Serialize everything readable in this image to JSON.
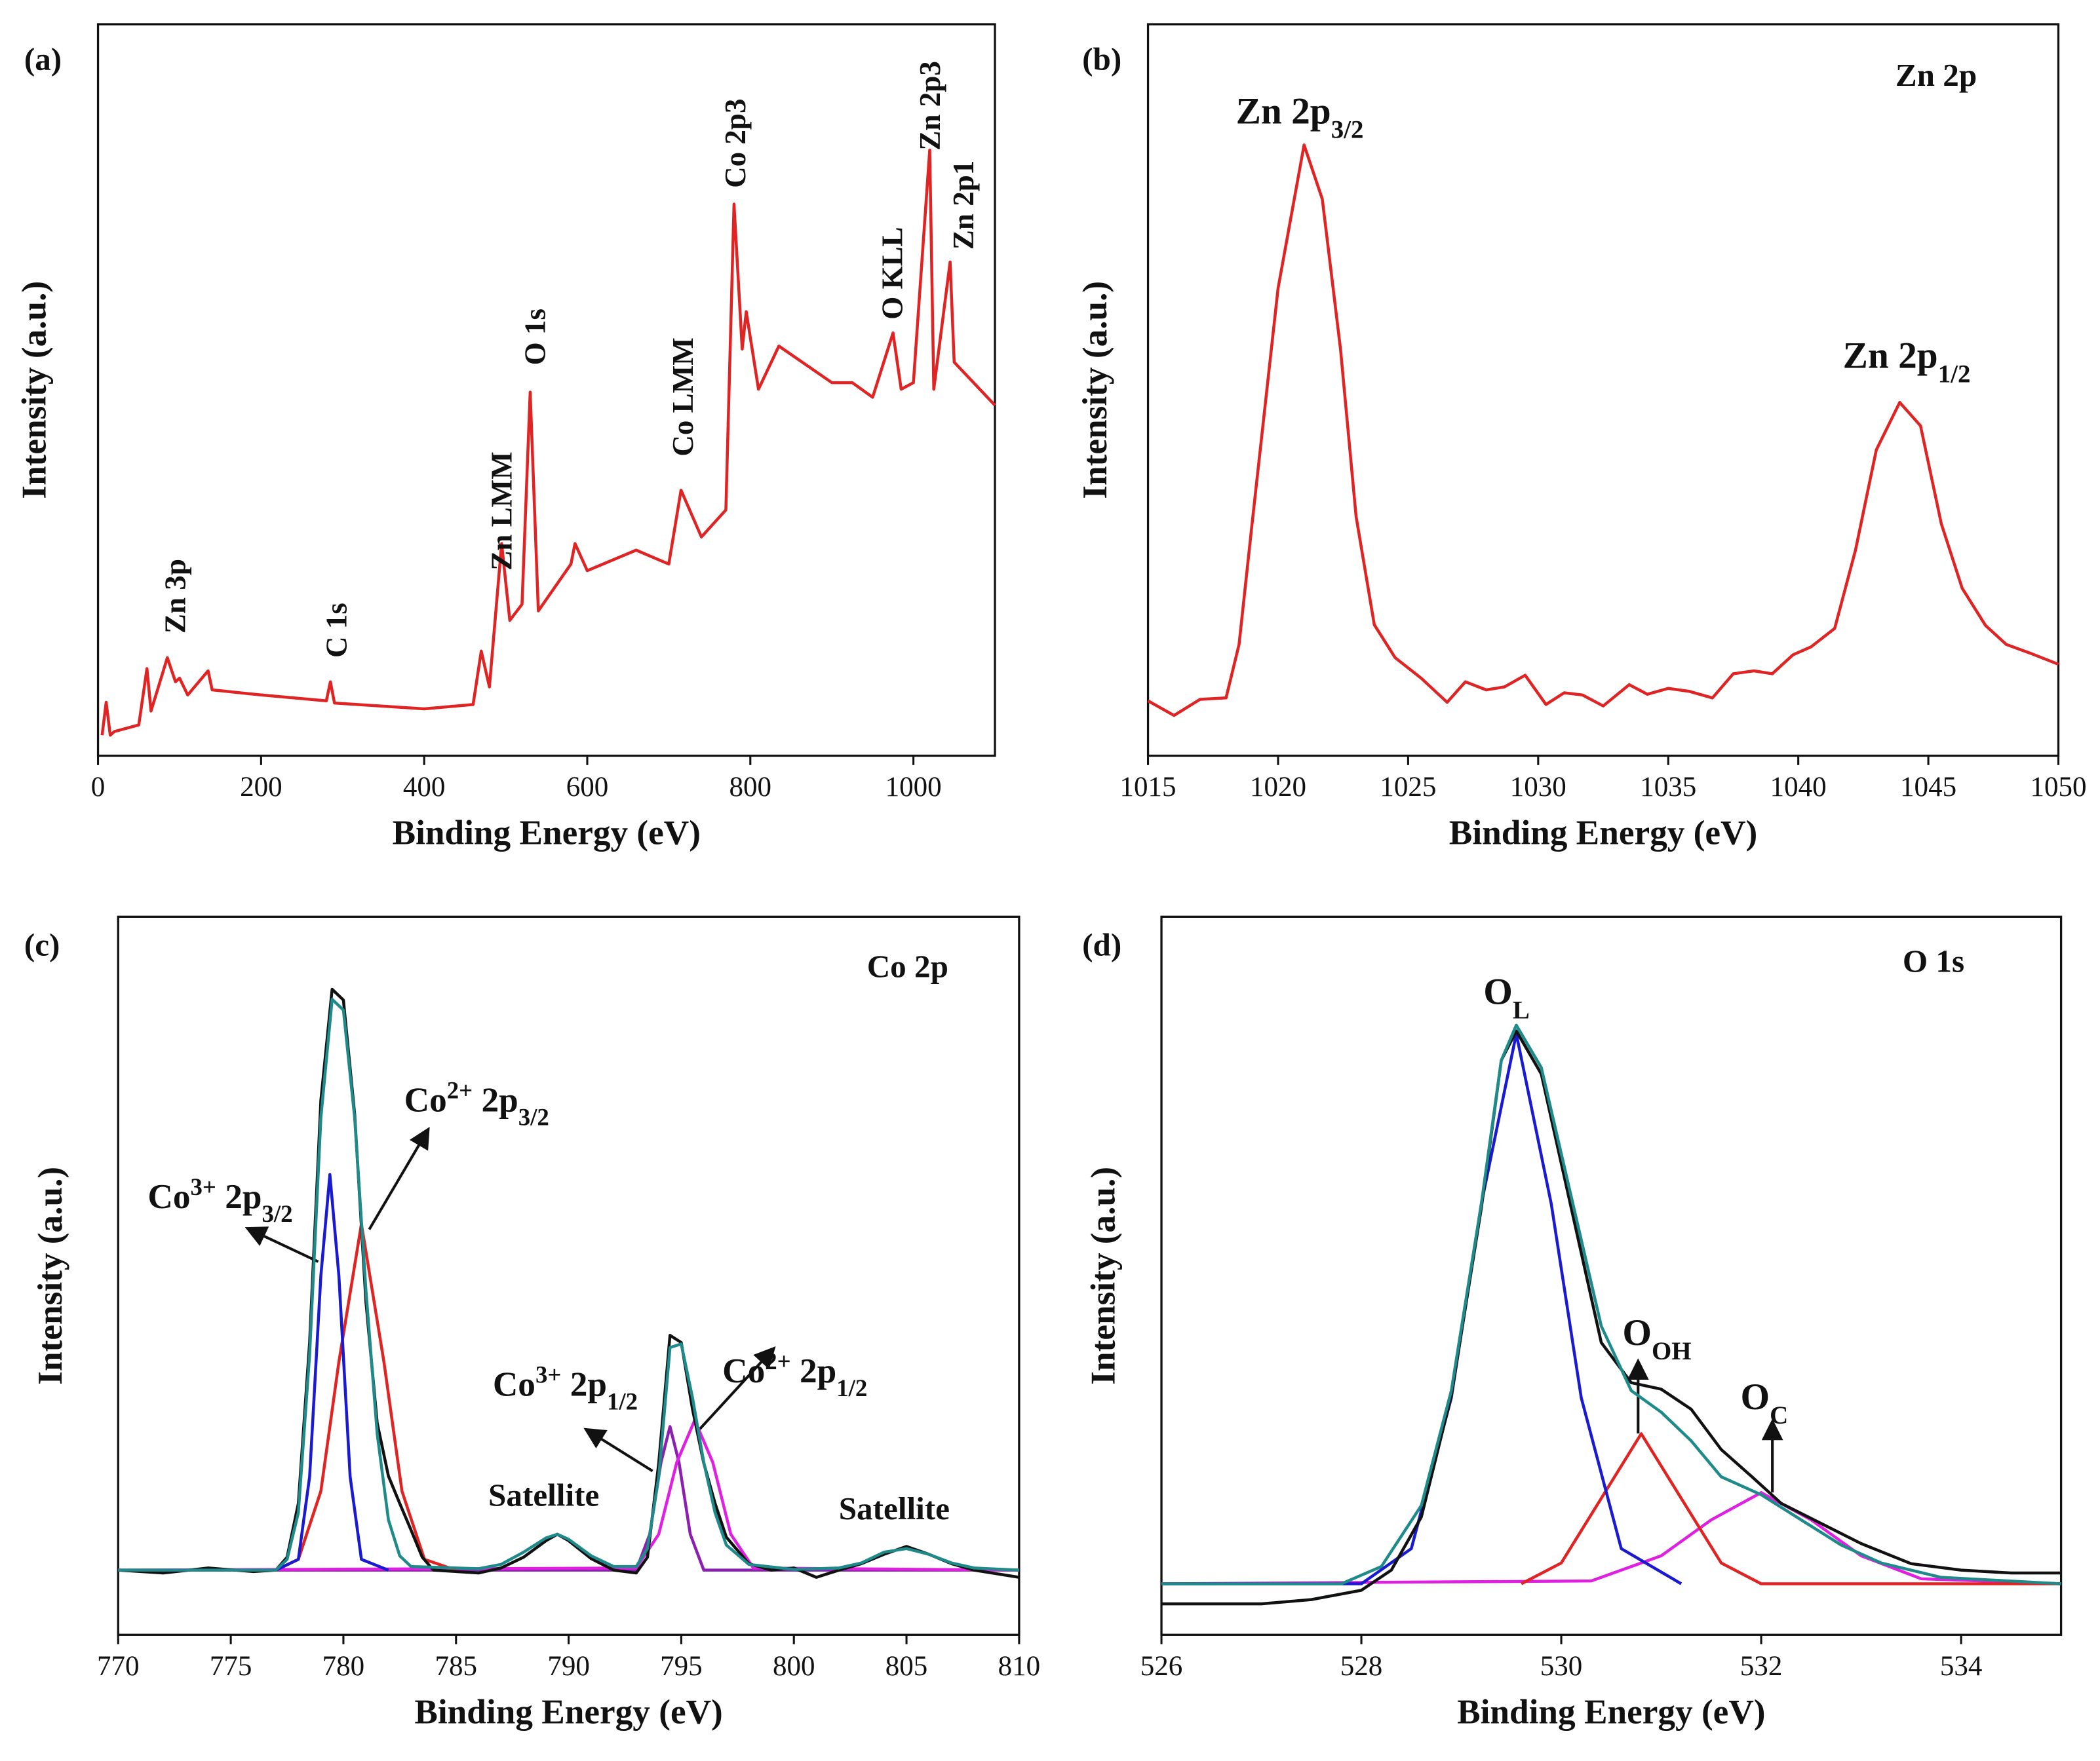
{
  "chart_data": [
    {
      "type": "line",
      "panel": "(a)",
      "xlabel": "Binding Energy (eV)",
      "ylabel": "Intensity (a.u.)",
      "xlim": [
        0,
        1100
      ],
      "xticks": [
        0,
        200,
        400,
        600,
        800,
        1000
      ],
      "ylim": [
        0,
        100
      ],
      "series": [
        {
          "color": "#e02424",
          "x": [
            5,
            10,
            15,
            20,
            50,
            60,
            65,
            85,
            95,
            100,
            110,
            135,
            140,
            200,
            280,
            285,
            290,
            400,
            460,
            470,
            480,
            495,
            505,
            520,
            530,
            540,
            580,
            585,
            600,
            660,
            700,
            715,
            740,
            770,
            780,
            790,
            795,
            810,
            835,
            900,
            925,
            950,
            975,
            985,
            1000,
            1020,
            1025,
            1045,
            1050,
            1100
          ],
          "values": [
            2.8,
            7.3,
            2.8,
            3.3,
            4.2,
            11.9,
            6.1,
            13.4,
            10.1,
            10.6,
            8.3,
            11.6,
            9.0,
            8.3,
            7.5,
            10.1,
            7.2,
            6.4,
            7.0,
            14.3,
            9.4,
            29.0,
            18.5,
            20.7,
            49.7,
            19.8,
            26.2,
            29.0,
            25.3,
            28.1,
            26.2,
            36.3,
            29.9,
            33.6,
            75.4,
            55.6,
            60.7,
            50.1,
            56.0,
            51.0,
            51.0,
            49.0,
            57.8,
            50.1,
            51.0,
            82.8,
            50.1,
            67.5,
            53.8,
            47.9
          ]
        }
      ],
      "annotations": [
        "Zn 3p",
        "C 1s",
        "Zn LMM",
        "O 1s",
        "Co LMM",
        "Co 2p3",
        "O KLL",
        "Zn 2p3",
        "Zn 2p1"
      ]
    },
    {
      "type": "line",
      "panel": "(b)",
      "xlabel": "Binding Energy (eV)",
      "ylabel": "Intensity (a.u.)",
      "xlim": [
        1015,
        1050
      ],
      "xticks": [
        1015,
        1020,
        1025,
        1030,
        1035,
        1040,
        1045,
        1050
      ],
      "ylim": [
        0,
        100
      ],
      "series": [
        {
          "color": "#e02424",
          "x": [
            1015,
            1016,
            1017,
            1018,
            1018.5,
            1019,
            1020,
            1021,
            1021.7,
            1022.4,
            1023,
            1023.7,
            1024.5,
            1025.5,
            1026.5,
            1027.2,
            1028,
            1028.7,
            1029.5,
            1030.3,
            1031,
            1031.7,
            1032.5,
            1033.5,
            1034.2,
            1035,
            1035.8,
            1036.7,
            1037.5,
            1038.3,
            1039,
            1039.8,
            1040.5,
            1041.4,
            1042.2,
            1043,
            1043.9,
            1044.7,
            1045.5,
            1046.3,
            1047.2,
            1048,
            1049,
            1050
          ],
          "values": [
            7.5,
            5.5,
            7.7,
            7.9,
            15.2,
            31.7,
            63.9,
            83.5,
            76.1,
            55.6,
            32.7,
            17.9,
            13.4,
            10.6,
            7.3,
            10.1,
            9.0,
            9.4,
            11.0,
            7.0,
            8.6,
            8.3,
            6.8,
            9.7,
            8.4,
            9.2,
            8.8,
            7.9,
            11.2,
            11.6,
            11.2,
            13.8,
            14.9,
            17.4,
            28.1,
            41.8,
            48.3,
            45.1,
            31.7,
            22.9,
            17.8,
            15.2,
            13.9,
            12.5
          ]
        }
      ],
      "annotations": [
        "Zn 2p",
        [
          "Zn 2p",
          {
            "text": "3/2",
            "pos": "sub"
          }
        ],
        [
          "Zn 2p",
          {
            "text": "1/2",
            "pos": "sub"
          }
        ]
      ]
    },
    {
      "type": "line",
      "panel": "(c)",
      "xlabel": "Binding Energy (eV)",
      "ylabel": "Intensity (a.u.)",
      "xlim": [
        770,
        810
      ],
      "xticks": [
        770,
        775,
        780,
        785,
        790,
        795,
        800,
        805,
        810
      ],
      "ylim": [
        0,
        100
      ],
      "series": [
        {
          "color": "#8a1fb0",
          "x": [
            770,
            793,
            793.6,
            794.1,
            794.5,
            794.9,
            795.4,
            796,
            810
          ],
          "values": [
            9,
            9,
            14,
            24,
            29,
            24,
            14,
            9,
            9
          ]
        },
        {
          "color": "#e020e0",
          "x": [
            770,
            793,
            794,
            794.8,
            795.6,
            796.4,
            797.2,
            798.2,
            810
          ],
          "values": [
            9,
            9.3,
            14,
            24,
            29.9,
            24,
            14,
            9.3,
            9
          ]
        },
        {
          "color": "#e02424",
          "x": [
            777,
            778,
            779,
            779.8,
            780.8,
            781.8,
            782.6,
            783.6,
            785
          ],
          "values": [
            9,
            10.5,
            20,
            38,
            57.2,
            38,
            20,
            10.5,
            9
          ]
        },
        {
          "color": "#1a1ad0",
          "x": [
            777,
            778,
            778.5,
            779,
            779.4,
            779.8,
            780.3,
            780.8,
            782
          ],
          "values": [
            9,
            10.5,
            22,
            50,
            64.1,
            50,
            22,
            10.5,
            9
          ]
        },
        {
          "color": "#111111",
          "x": [
            770,
            772,
            774,
            776,
            777,
            777.5,
            778,
            778.5,
            779,
            779.5,
            780,
            780.5,
            781,
            781.5,
            782,
            782.5,
            783,
            783.5,
            784,
            786,
            787,
            788,
            789,
            789.5,
            790,
            791,
            792,
            793,
            793.5,
            794,
            794.5,
            795,
            795.5,
            796,
            796.5,
            797,
            798,
            799,
            800,
            801,
            802,
            803,
            804,
            805,
            806,
            807,
            808,
            810
          ],
          "values": [
            9.0,
            8.6,
            9.3,
            8.8,
            9.0,
            10.8,
            18.3,
            40.7,
            74.4,
            89.9,
            88.4,
            72.5,
            46.4,
            29.5,
            22.1,
            18.3,
            14.6,
            10.8,
            9.0,
            8.6,
            9.3,
            10.8,
            13.1,
            14.0,
            13.1,
            10.6,
            9.0,
            8.6,
            10.8,
            23.9,
            41.7,
            40.7,
            31.4,
            23.9,
            18.3,
            13.6,
            9.9,
            9.0,
            9.3,
            8.0,
            9.0,
            9.9,
            11.2,
            12.3,
            11.2,
            9.9,
            9.0,
            8.0
          ]
        },
        {
          "color": "#1f8a8a",
          "x": [
            770,
            777,
            777.5,
            778,
            778.5,
            779,
            779.5,
            780,
            780.5,
            781,
            781.5,
            782,
            782.5,
            783,
            786,
            787,
            788,
            789,
            789.5,
            790,
            791,
            792,
            793,
            793.5,
            794,
            794.5,
            795,
            795.5,
            796,
            796.5,
            797,
            798,
            800,
            802,
            803,
            804,
            805,
            806,
            807,
            808,
            810
          ],
          "values": [
            9.0,
            9.0,
            10.5,
            17,
            39,
            72,
            88.5,
            87,
            72,
            48,
            28,
            16,
            11,
            9.5,
            9.2,
            9.8,
            11.5,
            13.5,
            14,
            13.3,
            11,
            9.5,
            9.5,
            12,
            22,
            40,
            40.5,
            33,
            24,
            17,
            12.5,
            9.8,
            9.1,
            9.3,
            10,
            11.5,
            12,
            11.2,
            10,
            9.3,
            9.0
          ]
        }
      ],
      "annotations": [
        "Co 2p",
        [
          "Co",
          {
            "text": "3+",
            "pos": "sup"
          },
          " 2p",
          {
            "text": "3/2",
            "pos": "sub"
          }
        ],
        [
          "Co",
          {
            "text": "2+",
            "pos": "sup"
          },
          " 2p",
          {
            "text": "3/2",
            "pos": "sub"
          }
        ],
        [
          "Co",
          {
            "text": "3+",
            "pos": "sup"
          },
          " 2p",
          {
            "text": "1/2",
            "pos": "sub"
          }
        ],
        [
          "Co",
          {
            "text": "2+",
            "pos": "sup"
          },
          " 2p",
          {
            "text": "1/2",
            "pos": "sub"
          }
        ],
        "Satellite",
        "Satellite"
      ]
    },
    {
      "type": "line",
      "panel": "(d)",
      "xlabel": "Binding Energy (eV)",
      "ylabel": "Intensity (a.u.)",
      "xlim": [
        526,
        535
      ],
      "xticks": [
        526,
        528,
        530,
        532,
        534
      ],
      "ylim": [
        0,
        100
      ],
      "series": [
        {
          "color": "#e020e0",
          "x": [
            526,
            530.3,
            531,
            531.5,
            532,
            532.5,
            533,
            533.6,
            535
          ],
          "values": [
            7.1,
            7.5,
            11,
            16,
            19.8,
            16,
            11,
            7.8,
            7.1
          ]
        },
        {
          "color": "#e02424",
          "x": [
            529.6,
            530,
            530.4,
            530.8,
            531.2,
            531.6,
            532,
            535
          ],
          "values": [
            7.1,
            10,
            19,
            28,
            19,
            10,
            7.1,
            7.1
          ]
        },
        {
          "color": "#1a1ad0",
          "x": [
            526,
            528,
            528.5,
            528.9,
            529.2,
            529.55,
            529.9,
            530.2,
            530.6,
            531.2
          ],
          "values": [
            7.1,
            7.1,
            12,
            33,
            60,
            83.7,
            60,
            33,
            12,
            7.1
          ]
        },
        {
          "color": "#111111",
          "x": [
            526,
            527,
            527.5,
            528,
            528.3,
            528.6,
            528.9,
            529.2,
            529.4,
            529.55,
            529.8,
            530.1,
            530.4,
            530.7,
            531,
            531.3,
            531.6,
            531.9,
            532.2,
            532.6,
            533,
            533.5,
            534,
            534.5,
            535
          ],
          "values": [
            4.3,
            4.3,
            4.9,
            6.2,
            9.0,
            16.4,
            33.3,
            59.4,
            80.0,
            84.1,
            78.1,
            59.4,
            40.7,
            35.1,
            34.2,
            31.4,
            25.8,
            22.1,
            18.3,
            15.5,
            12.7,
            9.9,
            9.0,
            8.6,
            8.6
          ]
        },
        {
          "color": "#1f8a8a",
          "x": [
            526,
            527.8,
            528.2,
            528.6,
            528.9,
            529.2,
            529.4,
            529.55,
            529.8,
            530.1,
            530.4,
            530.7,
            531,
            531.3,
            531.6,
            532,
            532.4,
            532.8,
            533.2,
            533.8,
            535
          ],
          "values": [
            7.1,
            7.1,
            9.5,
            18,
            34,
            60,
            80,
            84.9,
            79,
            61,
            43,
            34,
            31,
            27,
            22,
            19.5,
            16,
            12.5,
            10,
            8,
            7.1
          ]
        }
      ],
      "annotations": [
        "O 1s",
        [
          "O",
          {
            "text": "L",
            "pos": "sub"
          }
        ],
        [
          "O",
          {
            "text": "OH",
            "pos": "sub"
          }
        ],
        [
          "O",
          {
            "text": "C",
            "pos": "sub"
          }
        ]
      ]
    }
  ]
}
